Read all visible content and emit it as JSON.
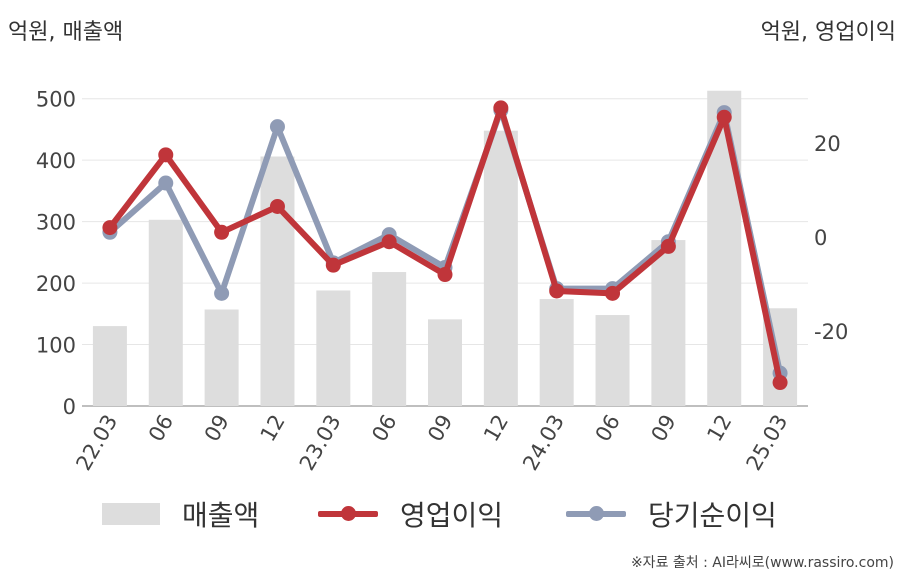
{
  "units": {
    "left": "억원, 매출액",
    "right": "억원, 영업이익"
  },
  "source": "※자료 출처 : AI라씨로(www.rassiro.com)",
  "legend": {
    "revenue": "매출액",
    "operating_income": "영업이익",
    "net_income": "당기순이익"
  },
  "colors": {
    "revenue": "#dddddd",
    "operating_income": "#c0353a",
    "net_income": "#8f9bb5"
  },
  "chart_data": {
    "type": "bar+line",
    "categories": [
      "22.03",
      "06",
      "09",
      "12",
      "23.03",
      "06",
      "09",
      "12",
      "24.03",
      "06",
      "09",
      "12",
      "25.03"
    ],
    "left_axis": {
      "ylim": [
        0,
        550
      ],
      "ticks": [
        0,
        100,
        200,
        300,
        400,
        500
      ]
    },
    "right_axis": {
      "ylim": [
        -36,
        36
      ],
      "ticks": [
        -20,
        0,
        20
      ]
    },
    "grid": true,
    "legend_position": "bottom",
    "series": [
      {
        "name": "매출액",
        "type": "bar",
        "axis": "left",
        "values": [
          130,
          303,
          157,
          406,
          188,
          218,
          141,
          448,
          174,
          148,
          270,
          513,
          159
        ]
      },
      {
        "name": "영업이익",
        "type": "line",
        "axis": "right",
        "values": [
          2,
          17.5,
          1,
          6.5,
          -6,
          -1,
          -8,
          27.5,
          -11.5,
          -12,
          -2,
          25.5,
          -31
        ]
      },
      {
        "name": "당기순이익",
        "type": "line",
        "axis": "right",
        "values": [
          1,
          11.5,
          -12,
          23.5,
          -5.5,
          0.5,
          -6.5,
          27,
          -11,
          -11,
          -1,
          26.5,
          -29
        ]
      }
    ]
  }
}
